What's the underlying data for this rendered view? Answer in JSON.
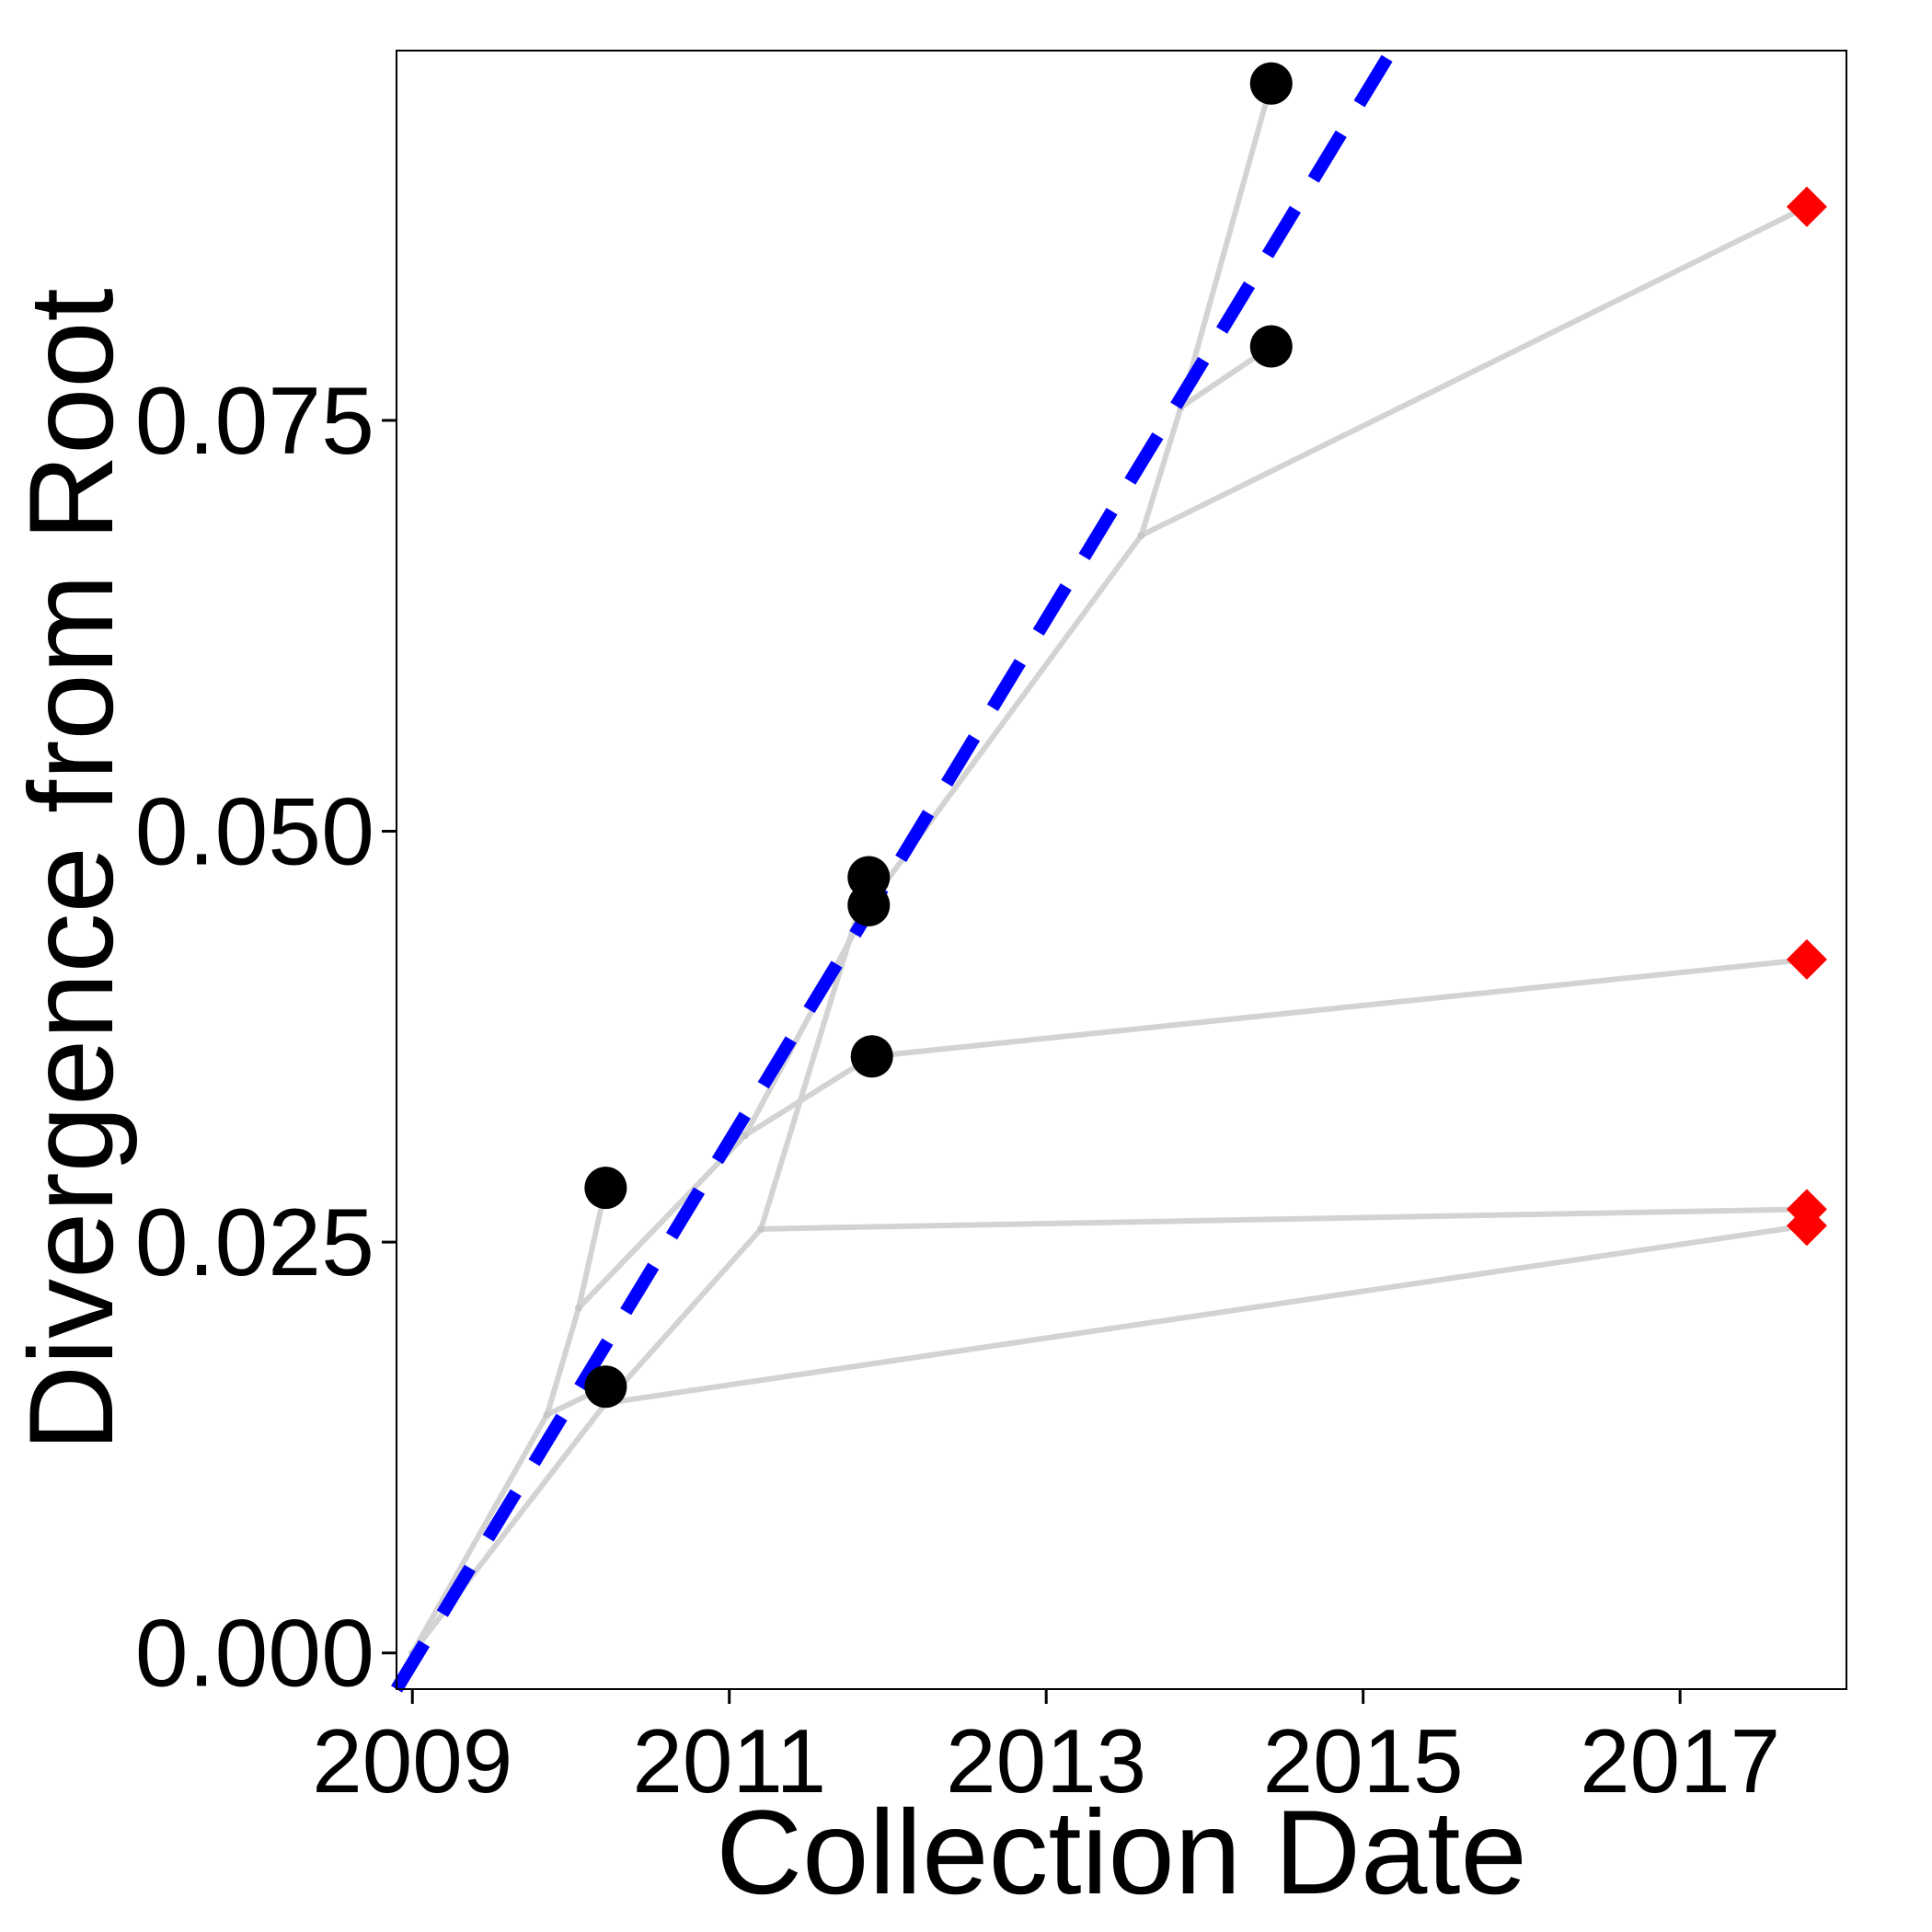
{
  "chart_data": {
    "type": "scatter",
    "title": "",
    "xlabel": "Collection Date",
    "ylabel": "Divergence from Root",
    "xlim": [
      2008.9,
      2018.05
    ],
    "ylim": [
      -0.0022,
      0.0975
    ],
    "x_ticks": [
      2009,
      2011,
      2013,
      2015,
      2017
    ],
    "x_tick_labels": [
      "2009",
      "2011",
      "2013",
      "2015",
      "2017"
    ],
    "y_ticks": [
      0.0,
      0.025,
      0.05,
      0.075
    ],
    "y_tick_labels": [
      "0.000",
      "0.025",
      "0.050",
      "0.075"
    ],
    "grid": false,
    "legend": "none",
    "colors": {
      "tree": "#d3d3d3",
      "dated_tips": "#000000",
      "undated_tips": "#ff0000",
      "regression": "#0000ff",
      "frame": "#000000"
    },
    "tree_edges": [
      [
        [
          2009.0,
          0.0
        ],
        [
          2009.85,
          0.0145
        ]
      ],
      [
        [
          2009.85,
          0.0145
        ],
        [
          2010.05,
          0.021
        ]
      ],
      [
        [
          2010.05,
          0.021
        ],
        [
          2010.22,
          0.0283
        ]
      ],
      [
        [
          2010.05,
          0.021
        ],
        [
          2011.1,
          0.0315
        ]
      ],
      [
        [
          2011.1,
          0.0315
        ],
        [
          2011.9,
          0.0363
        ]
      ],
      [
        [
          2011.9,
          0.0363
        ],
        [
          2017.8,
          0.0422
        ]
      ],
      [
        [
          2011.1,
          0.0315
        ],
        [
          2011.88,
          0.0455
        ]
      ],
      [
        [
          2009.85,
          0.0145
        ],
        [
          2010.22,
          0.0162
        ]
      ],
      [
        [
          2009.0,
          0.0
        ],
        [
          2010.22,
          0.0152
        ]
      ],
      [
        [
          2010.22,
          0.0152
        ],
        [
          2017.8,
          0.026
        ]
      ],
      [
        [
          2010.22,
          0.0152
        ],
        [
          2011.2,
          0.0258
        ]
      ],
      [
        [
          2011.2,
          0.0258
        ],
        [
          2017.8,
          0.027
        ]
      ],
      [
        [
          2011.2,
          0.0258
        ],
        [
          2011.88,
          0.0472
        ]
      ],
      [
        [
          2011.88,
          0.0455
        ],
        [
          2013.6,
          0.068
        ]
      ],
      [
        [
          2013.6,
          0.068
        ],
        [
          2017.8,
          0.088
        ]
      ],
      [
        [
          2013.6,
          0.068
        ],
        [
          2013.85,
          0.0758
        ]
      ],
      [
        [
          2013.85,
          0.0758
        ],
        [
          2014.42,
          0.0795
        ]
      ],
      [
        [
          2013.85,
          0.0758
        ],
        [
          2014.42,
          0.0955
        ]
      ]
    ],
    "series": [
      {
        "marker": "circle",
        "color": "#000000",
        "points": [
          [
            2010.22,
            0.0283
          ],
          [
            2010.22,
            0.0162
          ],
          [
            2011.88,
            0.0472
          ],
          [
            2011.88,
            0.0455
          ],
          [
            2011.9,
            0.0363
          ],
          [
            2014.42,
            0.0955
          ],
          [
            2014.42,
            0.0795
          ]
        ]
      },
      {
        "marker": "diamond",
        "color": "#ff0000",
        "points": [
          [
            2017.8,
            0.088
          ],
          [
            2017.8,
            0.0422
          ],
          [
            2017.8,
            0.027
          ],
          [
            2017.8,
            0.026
          ]
        ]
      }
    ],
    "regression_line": {
      "style": "dashed",
      "color": "#0000ff",
      "points": [
        [
          2008.9,
          -0.0022
        ],
        [
          2015.18,
          0.0975
        ]
      ]
    }
  }
}
